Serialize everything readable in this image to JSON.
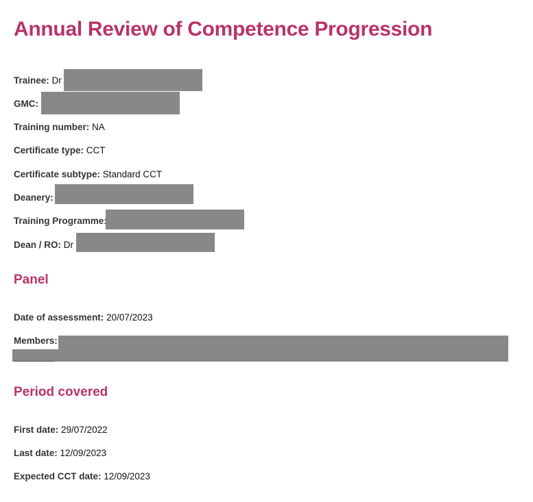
{
  "title": "Annual Review of Competence Progression",
  "colors": {
    "heading": "#b8336a",
    "redaction": "#888888"
  },
  "trainee_details": {
    "trainee": {
      "label": "Trainee:",
      "value": "Dr",
      "redacted": true
    },
    "gmc": {
      "label": "GMC:",
      "value": "",
      "redacted": true
    },
    "training_number": {
      "label": "Training number:",
      "value": "NA"
    },
    "certificate_type": {
      "label": "Certificate type:",
      "value": "CCT"
    },
    "certificate_subtype": {
      "label": "Certificate subtype:",
      "value": "Standard CCT"
    },
    "deanery": {
      "label": "Deanery:",
      "value": "",
      "redacted": true
    },
    "training_programme": {
      "label": "Training Programme:",
      "value": "",
      "redacted": true
    },
    "dean_ro": {
      "label": "Dean / RO:",
      "value": "Dr",
      "redacted": true
    }
  },
  "panel": {
    "heading": "Panel",
    "date_of_assessment": {
      "label": "Date of assessment:",
      "value": "20/07/2023"
    },
    "members": {
      "label": "Members:",
      "value": "",
      "redacted": true
    }
  },
  "period_covered": {
    "heading": "Period covered",
    "first_date": {
      "label": "First date:",
      "value": "29/07/2022"
    },
    "last_date": {
      "label": "Last date:",
      "value": "12/09/2023"
    },
    "expected_cct_date": {
      "label": "Expected CCT date:",
      "value": "12/09/2023"
    }
  }
}
